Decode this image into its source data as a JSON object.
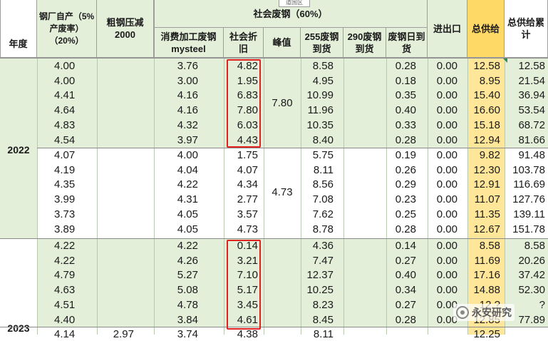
{
  "tooltip_text": "道国区",
  "watermark": {
    "text": "永安研究"
  },
  "headers": {
    "year": "年度",
    "steel_self": "钢厂自产（5%产废率）（20%）",
    "crude_cut": "粗钢压减2000",
    "social_scrap_group": "社会废钢（60%）",
    "consumer_mysteel": "消费加工废钢mysteel",
    "social_depreciation": "社会折旧",
    "peak": "峰值",
    "arrival_255": "255废钢到货",
    "arrival_290": "290废钢到货",
    "daily_arrival": "废钢日到货",
    "import_export": "进出口",
    "total_supply": "总供给",
    "cumulative_supply": "总供给累计"
  },
  "years": [
    {
      "label": "2022"
    },
    {
      "label": "2023"
    }
  ],
  "groups": [
    {
      "peak": "7.80",
      "rows": [
        [
          "4.00",
          "",
          "3.76",
          "4.82",
          "8.58",
          "",
          "0.28",
          "0.00",
          "12.58",
          "12.58"
        ],
        [
          "4.00",
          "",
          "3.00",
          "1.95",
          "4.95",
          "",
          "0.18",
          "0.00",
          "8.95",
          "21.54"
        ],
        [
          "4.41",
          "",
          "4.16",
          "6.83",
          "10.99",
          "",
          "0.35",
          "0.00",
          "15.40",
          "36.94"
        ],
        [
          "4.64",
          "",
          "4.16",
          "7.80",
          "11.96",
          "",
          "0.40",
          "0.00",
          "16.60",
          "53.54"
        ],
        [
          "4.83",
          "",
          "4.32",
          "6.03",
          "10.35",
          "",
          "0.33",
          "0.00",
          "15.18",
          "68.72"
        ],
        [
          "4.54",
          "",
          "3.97",
          "4.43",
          "8.40",
          "",
          "0.28",
          "0.00",
          "12.94",
          "81.66"
        ]
      ]
    },
    {
      "peak": "4.73",
      "rows": [
        [
          "4.07",
          "",
          "4.00",
          "1.75",
          "5.75",
          "",
          "0.19",
          "0.00",
          "9.82",
          "91.48"
        ],
        [
          "4.19",
          "",
          "4.04",
          "4.07",
          "8.11",
          "",
          "0.26",
          "0.00",
          "12.30",
          "103.78"
        ],
        [
          "4.35",
          "",
          "4.22",
          "4.34",
          "8.56",
          "",
          "0.29",
          "0.00",
          "12.91",
          "116.69"
        ],
        [
          "3.99",
          "",
          "4.31",
          "2.77",
          "7.08",
          "",
          "0.23",
          "0.00",
          "11.07",
          "127.76"
        ],
        [
          "3.73",
          "",
          "4.05",
          "3.57",
          "7.62",
          "",
          "0.25",
          "0.00",
          "11.35",
          "139.11"
        ],
        [
          "3.89",
          "",
          "4.05",
          "4.73",
          "8.78",
          "",
          "0.28",
          "0.00",
          "12.67",
          "151.78"
        ]
      ]
    },
    {
      "peak": "",
      "rows": [
        [
          "4.22",
          "",
          "4.22",
          "0.14",
          "4.36",
          "",
          "0.14",
          "0.00",
          "8.58",
          "8.58"
        ],
        [
          "4.22",
          "",
          "4.26",
          "3.21",
          "7.47",
          "",
          "0.27",
          "0.00",
          "11.69",
          "20.26"
        ],
        [
          "4.79",
          "",
          "5.27",
          "7.10",
          "12.37",
          "",
          "0.40",
          "0.00",
          "17.16",
          "37.42"
        ],
        [
          "4.63",
          "",
          "5.08",
          "5.17",
          "10.25",
          "",
          "0.34",
          "0.00",
          "14.88",
          "52.30"
        ],
        [
          "4.51",
          "",
          "4.78",
          "3.45",
          "8.23",
          "",
          "0.27",
          "0.00",
          "12.?",
          "?"
        ],
        [
          "4.40",
          "",
          "3.84",
          "4.61",
          "8.45",
          "",
          "0.28",
          "0.00",
          "12.85",
          "77.89"
        ]
      ]
    }
  ],
  "partial_row": [
    "4.14",
    "2.97",
    "3.74",
    "4.38",
    "8.11",
    "",
    "",
    "",
    "12.25",
    ""
  ]
}
